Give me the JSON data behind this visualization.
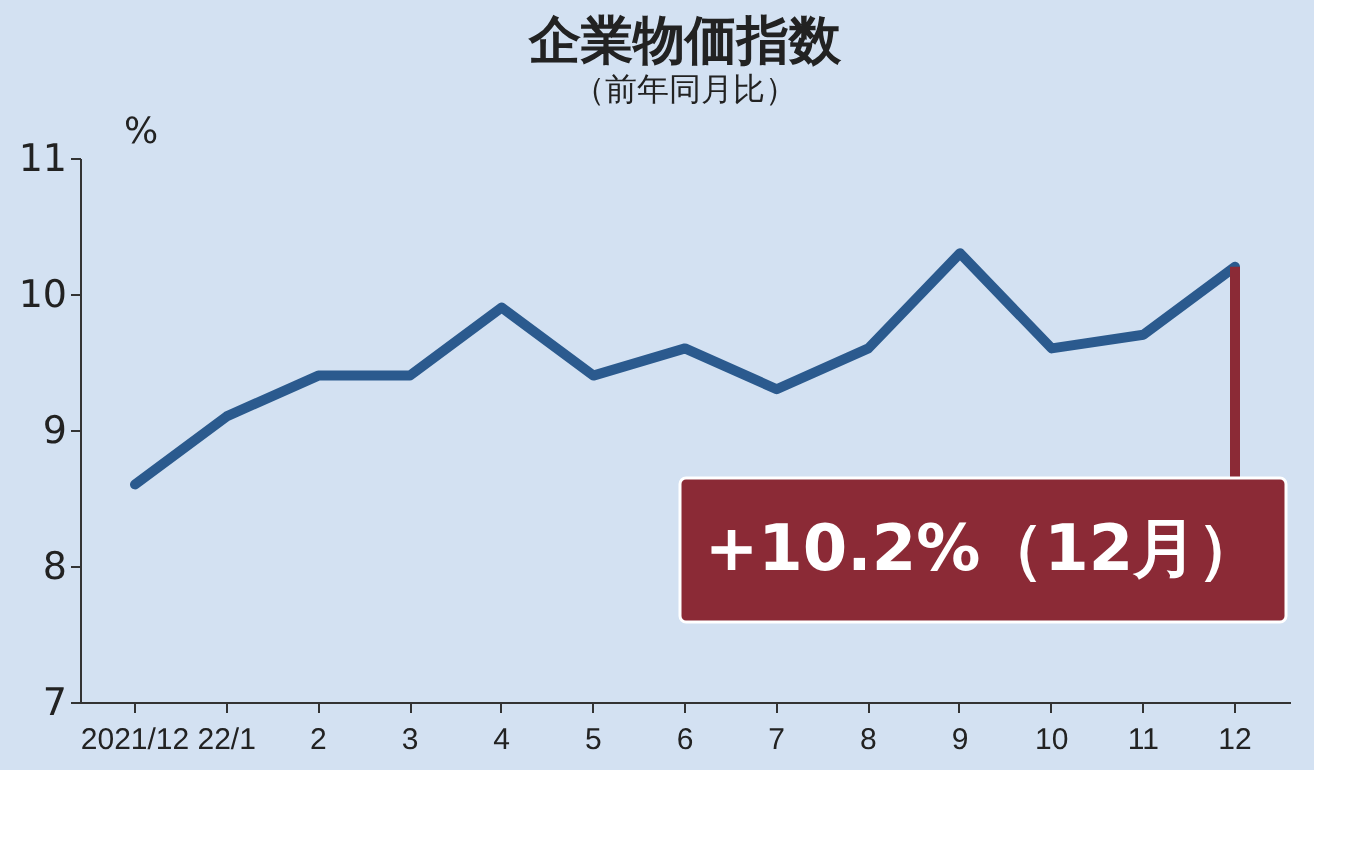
{
  "chart_data": {
    "type": "line",
    "title": "企業物価指数",
    "subtitle": "（前年同月比）",
    "ylabel": "%",
    "categories": [
      "2021/12",
      "22/1",
      "2",
      "3",
      "4",
      "5",
      "6",
      "7",
      "8",
      "9",
      "10",
      "11",
      "12"
    ],
    "series": [
      {
        "color": "#2b5a8e",
        "values": [
          8.6,
          9.1,
          9.4,
          9.4,
          9.9,
          9.4,
          9.6,
          9.3,
          9.6,
          10.3,
          9.6,
          9.7,
          10.2
        ]
      }
    ],
    "ylim": [
      7,
      11
    ],
    "yticks": [
      7,
      8,
      9,
      10,
      11
    ],
    "grid": false,
    "marker": "none",
    "line_style": "solid",
    "annotations": [
      {
        "text": "+10.2%（12月）",
        "x": "12",
        "y": 10.2
      }
    ]
  }
}
